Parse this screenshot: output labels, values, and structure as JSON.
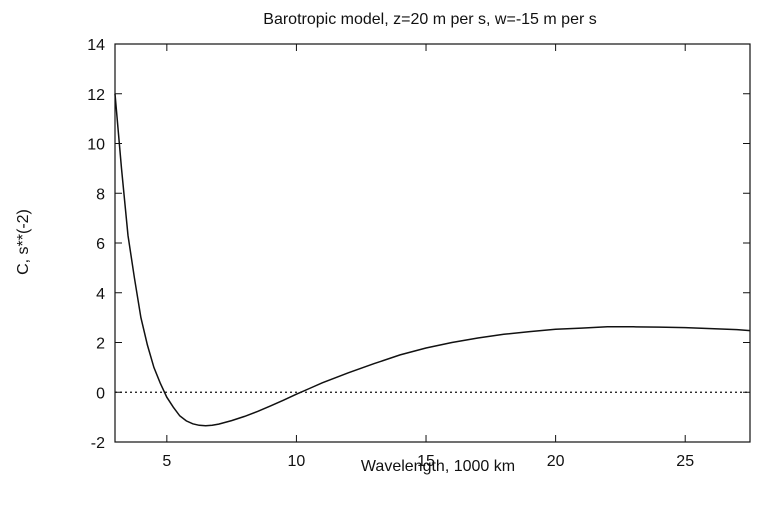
{
  "chart_data": {
    "type": "line",
    "title": "Barotropic model, z=20 m per s, w=-15 m per s",
    "xlabel": "Wavelength, 1000 km",
    "ylabel": "C, s**(-2)",
    "xlim": [
      3,
      27.5
    ],
    "ylim": [
      -2,
      14
    ],
    "x_ticks": [
      "5",
      "10",
      "15",
      "20",
      "25"
    ],
    "x_tick_values": [
      5,
      10,
      15,
      20,
      25
    ],
    "y_ticks": [
      "-2",
      "0",
      "2",
      "4",
      "6",
      "8",
      "10",
      "12",
      "14"
    ],
    "y_tick_values": [
      -2,
      0,
      2,
      4,
      6,
      8,
      10,
      12,
      14
    ],
    "grid": false,
    "reference_line": {
      "y": 0,
      "style": "dotted"
    },
    "series": [
      {
        "x": [
          3.0,
          3.25,
          3.5,
          3.75,
          4.0,
          4.25,
          4.5,
          4.75,
          5.0,
          5.25,
          5.5,
          5.75,
          6.0,
          6.25,
          6.5,
          6.75,
          7.0,
          7.5,
          8.0,
          8.5,
          9.0,
          9.5,
          10.0,
          10.5,
          11.0,
          11.5,
          12.0,
          13.0,
          14.0,
          15.0,
          16.0,
          17.0,
          18.0,
          19.0,
          20.0,
          21.0,
          22.0,
          23.0,
          24.0,
          25.0,
          26.0,
          27.0,
          27.5
        ],
        "y": [
          12.0,
          9.0,
          6.3,
          4.6,
          3.0,
          1.9,
          1.0,
          0.35,
          -0.2,
          -0.6,
          -0.95,
          -1.15,
          -1.27,
          -1.33,
          -1.35,
          -1.33,
          -1.28,
          -1.14,
          -0.97,
          -0.77,
          -0.55,
          -0.32,
          -0.08,
          0.15,
          0.38,
          0.58,
          0.78,
          1.15,
          1.5,
          1.78,
          2.0,
          2.18,
          2.33,
          2.44,
          2.53,
          2.58,
          2.63,
          2.63,
          2.62,
          2.6,
          2.56,
          2.52,
          2.48
        ]
      }
    ]
  }
}
